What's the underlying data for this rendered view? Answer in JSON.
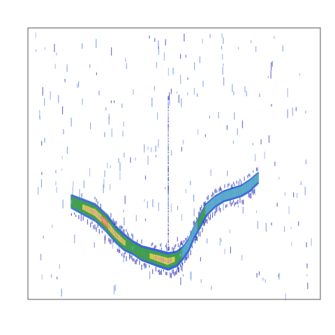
{
  "chart_data": {
    "type": "heatmap",
    "title": "",
    "xlabel": "",
    "ylabel": "",
    "x_ticks": [],
    "y_ticks": [],
    "grid": false,
    "legend": "none",
    "xlim": [
      0,
      1
    ],
    "ylim": [
      0,
      1
    ],
    "colormap": [
      "#0000aa",
      "#2f63d8",
      "#5fb0c8",
      "#44a24a",
      "#e0d24a",
      "#ee8a3a",
      "#e8a0a0"
    ],
    "ridge": {
      "x": [
        0.15,
        0.19,
        0.23,
        0.27,
        0.3,
        0.33,
        0.36,
        0.39,
        0.42,
        0.45,
        0.48,
        0.51,
        0.53,
        0.55,
        0.57,
        0.59,
        0.61,
        0.64,
        0.67,
        0.7,
        0.73,
        0.76,
        0.79
      ],
      "y": [
        0.36,
        0.34,
        0.32,
        0.28,
        0.24,
        0.21,
        0.19,
        0.17,
        0.16,
        0.15,
        0.14,
        0.15,
        0.17,
        0.2,
        0.25,
        0.29,
        0.33,
        0.36,
        0.38,
        0.39,
        0.4,
        0.42,
        0.45
      ],
      "intensity": [
        0.55,
        0.75,
        0.9,
        0.95,
        0.85,
        0.8,
        0.55,
        0.65,
        0.75,
        0.85,
        0.9,
        0.7,
        0.45,
        0.35,
        0.4,
        0.5,
        0.45,
        0.35,
        0.3,
        0.35,
        0.35,
        0.4,
        0.3
      ]
    },
    "vertical_streak": {
      "x": 0.48,
      "y_range": [
        0.15,
        0.75
      ]
    }
  }
}
